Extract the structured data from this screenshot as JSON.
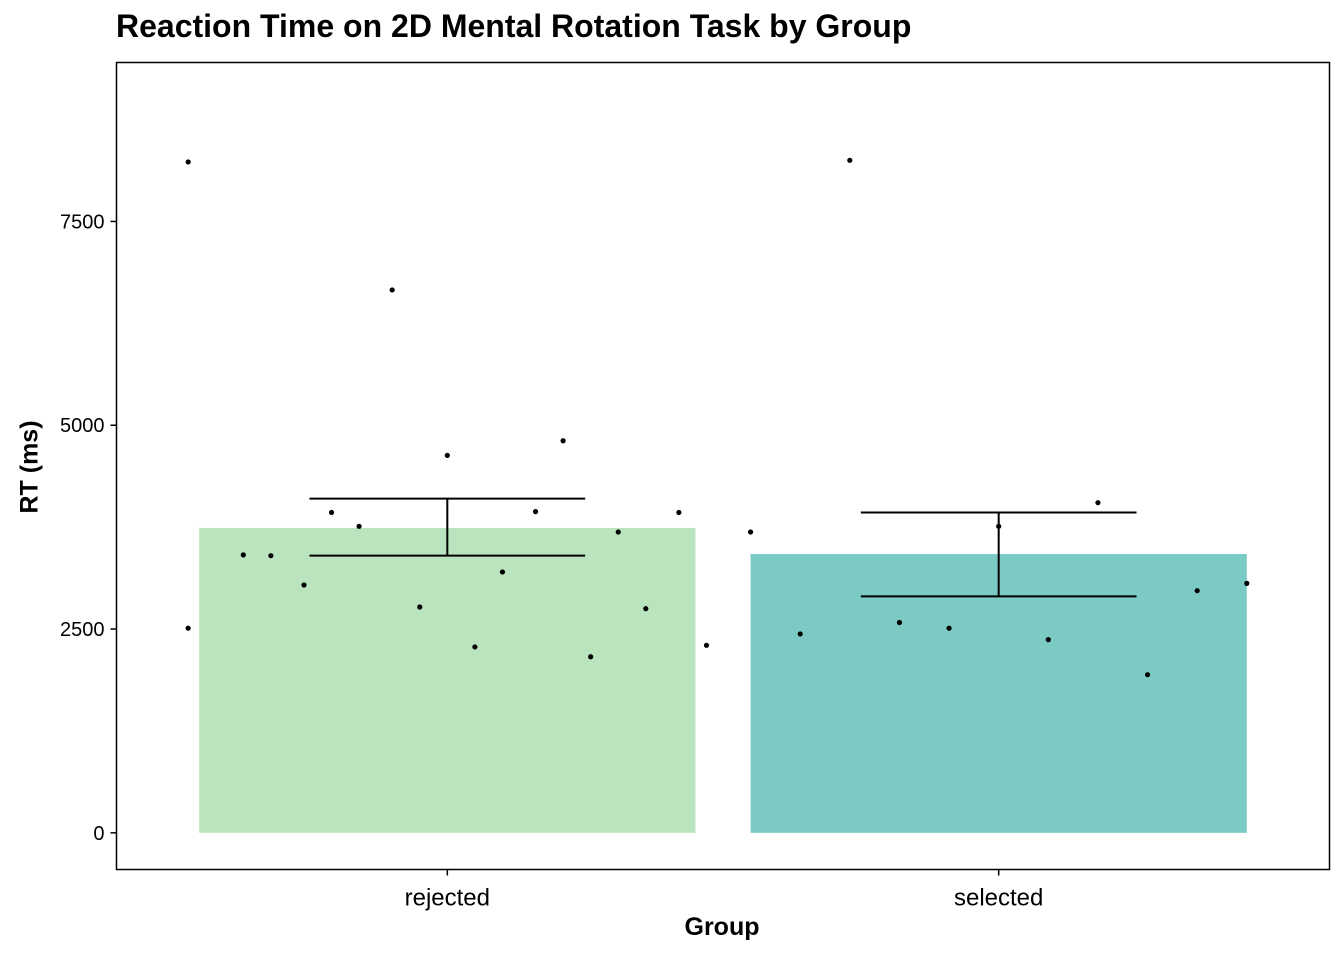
{
  "chart_data": {
    "type": "bar",
    "title": "Reaction Time on 2D Mental Rotation Task by Group",
    "xlabel": "Group",
    "ylabel": "RT (ms)",
    "categories": [
      "rejected",
      "selected"
    ],
    "values": [
      3740,
      3420
    ],
    "colors": [
      "#b9e4bd",
      "#7bcac4"
    ],
    "error_bars": [
      {
        "lower": 3400,
        "upper": 4100
      },
      {
        "lower": 2900,
        "upper": 3930
      }
    ],
    "points": [
      {
        "group": "rejected",
        "jitter": -0.47,
        "y": 8230
      },
      {
        "group": "rejected",
        "jitter": -0.1,
        "y": 6660
      },
      {
        "group": "rejected",
        "jitter": 0.21,
        "y": 4810
      },
      {
        "group": "rejected",
        "jitter": 0.0,
        "y": 4630
      },
      {
        "group": "rejected",
        "jitter": -0.21,
        "y": 3930
      },
      {
        "group": "rejected",
        "jitter": 0.16,
        "y": 3940
      },
      {
        "group": "rejected",
        "jitter": 0.42,
        "y": 3930
      },
      {
        "group": "rejected",
        "jitter": -0.16,
        "y": 3760
      },
      {
        "group": "rejected",
        "jitter": 0.31,
        "y": 3690
      },
      {
        "group": "rejected",
        "jitter": -0.37,
        "y": 3410
      },
      {
        "group": "rejected",
        "jitter": -0.32,
        "y": 3400
      },
      {
        "group": "rejected",
        "jitter": 0.1,
        "y": 3200
      },
      {
        "group": "rejected",
        "jitter": -0.26,
        "y": 3040
      },
      {
        "group": "rejected",
        "jitter": -0.05,
        "y": 2770
      },
      {
        "group": "rejected",
        "jitter": 0.36,
        "y": 2750
      },
      {
        "group": "rejected",
        "jitter": -0.47,
        "y": 2510
      },
      {
        "group": "rejected",
        "jitter": 0.47,
        "y": 2300
      },
      {
        "group": "rejected",
        "jitter": 0.05,
        "y": 2280
      },
      {
        "group": "rejected",
        "jitter": 0.26,
        "y": 2160
      },
      {
        "group": "selected",
        "jitter": -0.27,
        "y": 8250
      },
      {
        "group": "selected",
        "jitter": 0.18,
        "y": 4050
      },
      {
        "group": "selected",
        "jitter": 0.0,
        "y": 3760
      },
      {
        "group": "selected",
        "jitter": -0.45,
        "y": 3690
      },
      {
        "group": "selected",
        "jitter": 0.45,
        "y": 3060
      },
      {
        "group": "selected",
        "jitter": 0.36,
        "y": 2970
      },
      {
        "group": "selected",
        "jitter": -0.18,
        "y": 2580
      },
      {
        "group": "selected",
        "jitter": -0.09,
        "y": 2510
      },
      {
        "group": "selected",
        "jitter": -0.36,
        "y": 2440
      },
      {
        "group": "selected",
        "jitter": 0.09,
        "y": 2370
      },
      {
        "group": "selected",
        "jitter": 0.27,
        "y": 1940
      }
    ],
    "yticks": [
      0,
      2500,
      5000,
      7500
    ],
    "ylim": [
      -450,
      9450
    ],
    "grid": false,
    "legend": "none"
  }
}
